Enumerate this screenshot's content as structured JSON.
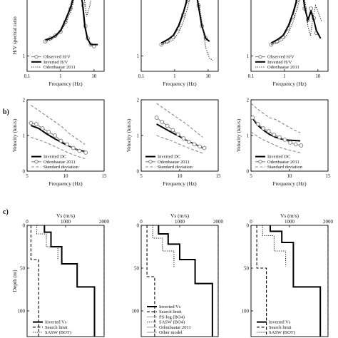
{
  "panel_labels": [
    "b)",
    "c)"
  ],
  "chart_data": [
    {
      "type": "line",
      "row": "a",
      "col": 0,
      "xscale": "log",
      "yscale": "log",
      "xlim": [
        0.1,
        20
      ],
      "ylim": [
        0.7,
        6
      ],
      "xticks": [
        "0.1",
        "1",
        "10"
      ],
      "yticks": [
        "1"
      ],
      "xlabel": "Frequency (Hz)",
      "ylabel": "H/V spectral ratio",
      "legend": [
        "Observed H/V",
        "Inverted H/V",
        "Odonbaatar 2011"
      ],
      "series": [
        {
          "name": "Observed H/V",
          "style": "circles",
          "x": [
            0.35,
            0.5,
            0.7,
            1.0,
            1.4,
            2.0,
            2.6,
            3.2,
            4.0,
            4.8,
            5.5,
            6.5,
            8.0,
            10.0
          ],
          "y": [
            1.4,
            1.5,
            1.6,
            1.75,
            2.2,
            3.0,
            4.1,
            4.9,
            4.4,
            3.2,
            2.0,
            1.5,
            1.3,
            1.25
          ]
        },
        {
          "name": "Inverted H/V",
          "style": "solid",
          "x": [
            0.35,
            0.5,
            0.7,
            1.0,
            1.4,
            2.0,
            2.6,
            3.2,
            3.8,
            4.5,
            5.3,
            6.3,
            8.0,
            10.0,
            13.0
          ],
          "y": [
            1.45,
            1.5,
            1.6,
            1.8,
            2.3,
            3.1,
            4.3,
            5.2,
            4.8,
            3.4,
            2.0,
            1.5,
            1.3,
            1.3,
            1.3
          ]
        },
        {
          "name": "Odonbaatar 2011",
          "style": "dotted",
          "x": [
            0.35,
            0.5,
            0.7,
            1.0,
            1.4,
            2.0,
            2.6,
            3.2,
            4.0,
            5.0,
            6.0,
            7.5,
            9.0,
            11.0,
            13.0
          ],
          "y": [
            1.4,
            1.45,
            1.55,
            1.75,
            2.1,
            2.8,
            3.8,
            5.0,
            5.6,
            4.0,
            2.5,
            3.2,
            4.3,
            4.6,
            4.2
          ]
        }
      ]
    },
    {
      "type": "line",
      "row": "a",
      "col": 1,
      "xscale": "log",
      "yscale": "log",
      "xlim": [
        0.1,
        20
      ],
      "ylim": [
        0.7,
        6
      ],
      "xticks": [
        "0.1",
        "1",
        "10"
      ],
      "yticks": [
        "1"
      ],
      "xlabel": "Frequency (Hz)",
      "ylabel": "",
      "series": [
        {
          "name": "Observed H/V",
          "style": "circles",
          "x": [
            0.4,
            0.6,
            0.9,
            1.3,
            1.8,
            2.4,
            3.0,
            3.6,
            4.3,
            5.2,
            6.5,
            8.5
          ],
          "y": [
            1.3,
            1.4,
            1.55,
            1.9,
            2.6,
            3.6,
            4.8,
            5.2,
            4.5,
            3.2,
            2.0,
            1.5
          ]
        },
        {
          "name": "Inverted H/V",
          "style": "solid",
          "x": [
            0.4,
            0.6,
            0.9,
            1.3,
            1.8,
            2.4,
            3.0,
            3.6,
            4.3,
            5.2,
            6.5,
            8.5,
            11.0
          ],
          "y": [
            1.35,
            1.45,
            1.6,
            2.0,
            2.7,
            3.8,
            5.0,
            5.4,
            4.5,
            3.1,
            2.0,
            1.5,
            1.4
          ]
        },
        {
          "name": "Odonbaatar 2011",
          "style": "dotted",
          "x": [
            0.4,
            0.6,
            0.9,
            1.3,
            1.8,
            2.4,
            3.0,
            3.6,
            4.3,
            5.2,
            6.5,
            8.5,
            11.0,
            14.0
          ],
          "y": [
            1.3,
            1.35,
            1.45,
            1.7,
            2.2,
            3.0,
            4.0,
            5.0,
            5.0,
            3.6,
            2.2,
            1.2,
            0.95,
            0.9
          ]
        }
      ]
    },
    {
      "type": "line",
      "row": "a",
      "col": 2,
      "xscale": "log",
      "yscale": "log",
      "xlim": [
        0.1,
        20
      ],
      "ylim": [
        0.7,
        6
      ],
      "xticks": [
        "0.1",
        "1",
        "10"
      ],
      "yticks": [
        "1"
      ],
      "xlabel": "Frequency (Hz)",
      "ylabel": "",
      "legend": [
        "Observed H/V",
        "Inverted H/V",
        "Odonbaatar 2011"
      ],
      "series": [
        {
          "name": "Observed H/V",
          "style": "circles",
          "x": [
            0.4,
            0.6,
            0.9,
            1.3,
            1.8,
            2.4,
            3.0,
            3.5,
            4.0,
            5.0,
            6.2,
            7.5,
            9.0
          ],
          "y": [
            1.3,
            1.4,
            1.55,
            1.9,
            2.5,
            3.6,
            4.6,
            4.2,
            3.0,
            2.3,
            3.0,
            2.4,
            1.7
          ]
        },
        {
          "name": "Inverted H/V",
          "style": "solid",
          "x": [
            0.4,
            0.6,
            0.9,
            1.3,
            1.8,
            2.4,
            3.0,
            3.5,
            4.0,
            5.0,
            6.2,
            7.5,
            9.0,
            12.0
          ],
          "y": [
            1.35,
            1.45,
            1.6,
            2.0,
            2.7,
            3.8,
            4.8,
            4.3,
            3.1,
            2.3,
            2.8,
            2.3,
            1.8,
            1.5
          ]
        },
        {
          "name": "Odonbaatar 2011",
          "style": "dotted",
          "x": [
            0.4,
            0.6,
            0.9,
            1.3,
            1.8,
            2.4,
            3.0,
            3.6,
            4.3,
            5.0,
            6.0,
            7.0,
            8.5,
            10.0,
            13.0
          ],
          "y": [
            1.3,
            1.35,
            1.45,
            1.7,
            2.2,
            3.0,
            4.0,
            4.3,
            3.2,
            2.0,
            1.6,
            2.4,
            3.2,
            2.8,
            2.2
          ]
        }
      ]
    },
    {
      "type": "line",
      "row": "b",
      "col": 0,
      "xscale": "linear",
      "yscale": "linear",
      "xlim": [
        5,
        15
      ],
      "ylim": [
        0,
        2
      ],
      "xticks": [
        "5",
        "10",
        "15"
      ],
      "yticks": [
        "0",
        "1",
        "2"
      ],
      "xlabel": "Frequency (Hz)",
      "ylabel": "Velocity (km/s)",
      "legend": [
        "Inverted DC",
        "Odonbaatar 2011",
        "Standard deviation"
      ],
      "series": [
        {
          "name": "Inverted DC",
          "style": "solid",
          "x": [
            5.5,
            6.5,
            7.5,
            8.5,
            9.5,
            10.5,
            11.5,
            12.5
          ],
          "y": [
            1.28,
            1.2,
            1.05,
            0.92,
            0.8,
            0.7,
            0.6,
            0.55
          ]
        },
        {
          "name": "Odonbaatar 2011",
          "style": "circles",
          "x": [
            5.5,
            6.2,
            7.0,
            7.8,
            8.6,
            9.4,
            10.2,
            11.0,
            11.8,
            12.6
          ],
          "y": [
            1.35,
            1.32,
            1.2,
            1.1,
            1.0,
            0.85,
            0.75,
            0.65,
            0.57,
            0.52
          ]
        },
        {
          "name": "Standard deviation",
          "style": "dashed",
          "x": [
            5.5,
            6.5,
            7.5,
            8.5,
            9.5,
            10.5,
            11.5,
            12.5
          ],
          "y": [
            1.85,
            1.7,
            1.55,
            1.4,
            1.25,
            1.05,
            0.9,
            0.75
          ]
        },
        {
          "name": "Standard deviation",
          "style": "dashed",
          "x": [
            5.5,
            6.5,
            7.5,
            8.5,
            9.5,
            10.5,
            11.5,
            12.5
          ],
          "y": [
            0.95,
            0.88,
            0.8,
            0.7,
            0.6,
            0.5,
            0.42,
            0.35
          ]
        }
      ]
    },
    {
      "type": "line",
      "row": "b",
      "col": 1,
      "xscale": "linear",
      "yscale": "linear",
      "xlim": [
        5,
        15
      ],
      "ylim": [
        0,
        2
      ],
      "xticks": [
        "5",
        "10",
        "15"
      ],
      "yticks": [
        "0",
        "1",
        "2"
      ],
      "xlabel": "Frequency (Hz)",
      "ylabel": "Velocity (km/s)",
      "legend": [
        "Inverted DC",
        "Odonbaatar 2011",
        "Standard deviation"
      ],
      "series": [
        {
          "name": "Inverted DC",
          "style": "solid",
          "x": [
            7.0,
            8.0,
            9.0,
            10.0,
            11.0,
            12.0,
            13.0
          ],
          "y": [
            1.32,
            1.2,
            1.08,
            0.97,
            0.85,
            0.75,
            0.65
          ]
        },
        {
          "name": "Odonbaatar 2011",
          "style": "circles",
          "x": [
            7.0,
            7.7,
            8.4,
            9.1,
            9.8,
            10.5,
            11.2,
            11.9,
            12.6,
            13.2
          ],
          "y": [
            1.5,
            1.38,
            1.27,
            1.15,
            1.03,
            0.92,
            0.82,
            0.75,
            0.69,
            0.65
          ]
        },
        {
          "name": "Standard deviation",
          "style": "dashed",
          "x": [
            7.0,
            8.0,
            9.0,
            10.0,
            11.0,
            12.0,
            13.0
          ],
          "y": [
            1.9,
            1.75,
            1.6,
            1.45,
            1.3,
            1.12,
            0.95
          ]
        },
        {
          "name": "Standard deviation",
          "style": "dashed",
          "x": [
            7.0,
            8.0,
            9.0,
            10.0,
            11.0,
            12.0,
            13.0
          ],
          "y": [
            1.0,
            0.92,
            0.85,
            0.75,
            0.66,
            0.58,
            0.5
          ]
        }
      ]
    },
    {
      "type": "line",
      "row": "b",
      "col": 2,
      "xscale": "linear",
      "yscale": "linear",
      "xlim": [
        5,
        15
      ],
      "ylim": [
        0,
        2
      ],
      "xticks": [
        "5",
        "10",
        "15"
      ],
      "yticks": [
        "0",
        "1",
        "2"
      ],
      "xlabel": "Frequency (Hz)",
      "ylabel": "Velocity (km/s)",
      "legend": [
        "Inverted DC",
        "Odonbaatar 2011",
        "Standard deviation"
      ],
      "series": [
        {
          "name": "Inverted DC",
          "style": "solid",
          "x": [
            5.0,
            5.8,
            6.6,
            7.4,
            8.2,
            9.0,
            9.8,
            10.6,
            11.4
          ],
          "y": [
            1.55,
            1.3,
            1.15,
            1.03,
            0.95,
            0.9,
            0.87,
            0.86,
            0.85
          ]
        },
        {
          "name": "Odonbaatar 2011",
          "style": "circles",
          "x": [
            5.2,
            5.9,
            6.6,
            7.3,
            8.0,
            8.7,
            9.4,
            10.1,
            10.8,
            11.5
          ],
          "y": [
            1.5,
            1.32,
            1.2,
            1.12,
            1.02,
            0.95,
            0.88,
            0.8,
            0.75,
            0.72
          ]
        },
        {
          "name": "Standard deviation",
          "style": "dashed",
          "x": [
            5.0,
            5.8,
            6.6,
            7.4,
            8.2,
            9.0,
            9.8,
            10.6,
            11.4
          ],
          "y": [
            1.9,
            1.75,
            1.62,
            1.5,
            1.45,
            1.35,
            1.25,
            1.15,
            1.08
          ]
        },
        {
          "name": "Standard deviation",
          "style": "dashed",
          "x": [
            5.0,
            5.8,
            6.6,
            7.4,
            8.2,
            9.0,
            9.8,
            10.6,
            11.4
          ],
          "y": [
            1.1,
            0.98,
            0.88,
            0.8,
            0.72,
            0.65,
            0.6,
            0.56,
            0.52
          ]
        }
      ]
    },
    {
      "type": "line",
      "row": "c",
      "col": 0,
      "xscale": "linear",
      "yscale": "linear-inverted",
      "xlim": [
        0,
        2000
      ],
      "ylim": [
        0,
        130
      ],
      "xticks": [
        "0",
        "1000",
        "2000"
      ],
      "yticks": [
        "0",
        "50",
        "100"
      ],
      "xlabel": "Vs (m/s)",
      "ylabel": "Depth (m)",
      "xaxis": "top",
      "legend": [
        "Inverted Vs",
        "Search limit",
        "SASW (BOT)"
      ],
      "series": [
        {
          "name": "Inverted Vs",
          "style": "solid",
          "x": [
            450,
            450,
            620,
            620,
            900,
            900,
            1300,
            1300,
            1750,
            1750
          ],
          "y": [
            0,
            8,
            8,
            25,
            25,
            45,
            45,
            72,
            72,
            130
          ]
        },
        {
          "name": "Search limit",
          "style": "dashed",
          "x": [
            100,
            100,
            300,
            300
          ],
          "y": [
            0,
            40,
            40,
            130
          ]
        },
        {
          "name": "Search limit",
          "style": "dashed",
          "x": [
            2000,
            2000
          ],
          "y": [
            0,
            130
          ]
        },
        {
          "name": "SASW (BOT)",
          "style": "dotted",
          "x": [
            250,
            250,
            500,
            500,
            800,
            800
          ],
          "y": [
            0,
            10,
            10,
            25,
            25,
            40
          ]
        }
      ]
    },
    {
      "type": "line",
      "row": "c",
      "col": 1,
      "xscale": "linear",
      "yscale": "linear-inverted",
      "xlim": [
        0,
        2000
      ],
      "ylim": [
        0,
        130
      ],
      "xticks": [
        "0",
        "1000",
        "2000"
      ],
      "yticks": [
        "0",
        "50",
        "100"
      ],
      "xlabel": "Vs (m/s)",
      "ylabel": "",
      "xaxis": "top",
      "legend": [
        "Inverted Vs",
        "Search limit",
        "PS-log (BO4)",
        "SASW (BO4)",
        "Odonbaatar 2011",
        "Other model"
      ],
      "series": [
        {
          "name": "Inverted Vs",
          "style": "solid",
          "x": [
            450,
            450,
            700,
            700,
            1000,
            1000,
            1400,
            1400,
            1850,
            1850
          ],
          "y": [
            0,
            10,
            10,
            22,
            22,
            40,
            40,
            68,
            68,
            130
          ]
        },
        {
          "name": "Search limit",
          "style": "dashed",
          "x": [
            150,
            150,
            350,
            350
          ],
          "y": [
            0,
            60,
            60,
            130
          ]
        },
        {
          "name": "Search limit",
          "style": "dashed",
          "x": [
            2000,
            2000
          ],
          "y": [
            0,
            130
          ]
        },
        {
          "name": "SASW (BO4)",
          "style": "dotted",
          "x": [
            300,
            300,
            550,
            550,
            850,
            850
          ],
          "y": [
            0,
            15,
            15,
            30,
            30,
            50
          ]
        }
      ]
    },
    {
      "type": "line",
      "row": "c",
      "col": 2,
      "xscale": "linear",
      "yscale": "linear-inverted",
      "xlim": [
        0,
        2000
      ],
      "ylim": [
        0,
        130
      ],
      "xticks": [
        "0",
        "1000",
        "2000"
      ],
      "yticks": [
        "0",
        "50",
        "100"
      ],
      "xlabel": "Vs (m/s)",
      "ylabel": "",
      "xaxis": "top",
      "legend": [
        "Inverted Vs",
        "Search limit",
        "SASW (BOT)"
      ],
      "series": [
        {
          "name": "Inverted Vs",
          "style": "solid",
          "x": [
            500,
            500,
            800,
            800,
            1100,
            1100,
            1800,
            1800
          ],
          "y": [
            0,
            7,
            7,
            20,
            20,
            72,
            72,
            130
          ]
        },
        {
          "name": "Search limit",
          "style": "dashed",
          "x": [
            150,
            150,
            400,
            400
          ],
          "y": [
            0,
            50,
            50,
            130
          ]
        },
        {
          "name": "Search limit",
          "style": "dashed",
          "x": [
            2000,
            2000
          ],
          "y": [
            0,
            130
          ]
        },
        {
          "name": "SASW (BOT)",
          "style": "dotted",
          "x": [
            300,
            300,
            600,
            600,
            900,
            900
          ],
          "y": [
            0,
            12,
            12,
            30,
            30,
            48
          ]
        }
      ]
    }
  ]
}
